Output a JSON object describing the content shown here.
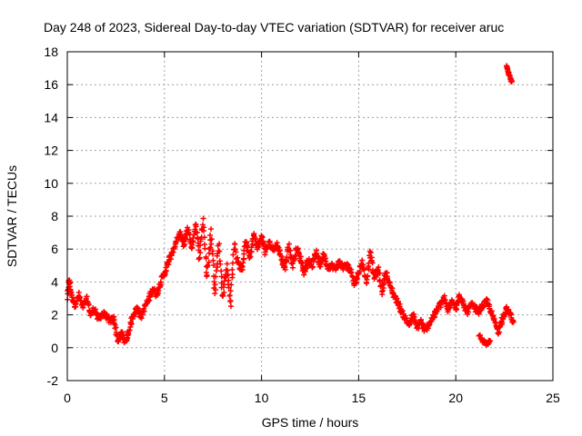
{
  "chart_data": {
    "type": "scatter",
    "title": "Day 248 of 2023, Sidereal Day-to-day VTEC variation (SDTVAR) for receiver aruc",
    "xlabel": "GPS time / hours",
    "ylabel": "SDTVAR / TECUs",
    "xlim": [
      0,
      25
    ],
    "ylim": [
      -2,
      18
    ],
    "xticks": [
      0,
      5,
      10,
      15,
      20,
      25
    ],
    "yticks": [
      -2,
      0,
      2,
      4,
      6,
      8,
      10,
      12,
      14,
      16,
      18
    ],
    "grid": true,
    "marker": "+",
    "color": "#ff0000",
    "series": [
      {
        "name": "SDTVAR",
        "path": [
          [
            0.0,
            3.0
          ],
          [
            0.1,
            4.1
          ],
          [
            0.2,
            3.2
          ],
          [
            0.4,
            2.6
          ],
          [
            0.6,
            3.2
          ],
          [
            0.8,
            2.4
          ],
          [
            1.0,
            3.0
          ],
          [
            1.2,
            2.0
          ],
          [
            1.4,
            2.4
          ],
          [
            1.6,
            1.7
          ],
          [
            1.8,
            2.1
          ],
          [
            2.0,
            1.9
          ],
          [
            2.2,
            1.6
          ],
          [
            2.4,
            1.8
          ],
          [
            2.6,
            0.4
          ],
          [
            2.8,
            0.9
          ],
          [
            3.0,
            0.3
          ],
          [
            3.2,
            1.2
          ],
          [
            3.4,
            2.0
          ],
          [
            3.6,
            2.4
          ],
          [
            3.8,
            1.9
          ],
          [
            4.0,
            2.5
          ],
          [
            4.2,
            3.0
          ],
          [
            4.4,
            3.6
          ],
          [
            4.6,
            3.2
          ],
          [
            4.8,
            4.0
          ],
          [
            5.0,
            4.5
          ],
          [
            5.2,
            5.2
          ],
          [
            5.4,
            5.8
          ],
          [
            5.6,
            6.4
          ],
          [
            5.8,
            7.0
          ],
          [
            6.0,
            6.2
          ],
          [
            6.2,
            7.3
          ],
          [
            6.4,
            6.0
          ],
          [
            6.6,
            7.6
          ],
          [
            6.8,
            5.4
          ],
          [
            7.0,
            7.8
          ],
          [
            7.2,
            4.2
          ],
          [
            7.4,
            7.1
          ],
          [
            7.6,
            3.4
          ],
          [
            7.8,
            6.4
          ],
          [
            8.0,
            3.0
          ],
          [
            8.2,
            5.0
          ],
          [
            8.4,
            2.6
          ],
          [
            8.6,
            6.4
          ],
          [
            8.8,
            5.0
          ],
          [
            9.0,
            4.8
          ],
          [
            9.2,
            6.5
          ],
          [
            9.4,
            5.4
          ],
          [
            9.6,
            6.9
          ],
          [
            9.8,
            6.0
          ],
          [
            10.0,
            6.8
          ],
          [
            10.2,
            5.8
          ],
          [
            10.4,
            6.4
          ],
          [
            10.6,
            5.9
          ],
          [
            10.8,
            6.3
          ],
          [
            11.0,
            5.5
          ],
          [
            11.2,
            4.8
          ],
          [
            11.4,
            6.2
          ],
          [
            11.6,
            5.0
          ],
          [
            11.8,
            6.1
          ],
          [
            12.0,
            5.4
          ],
          [
            12.2,
            4.6
          ],
          [
            12.4,
            5.3
          ],
          [
            12.6,
            5.0
          ],
          [
            12.8,
            5.8
          ],
          [
            13.0,
            5.0
          ],
          [
            13.2,
            5.7
          ],
          [
            13.4,
            4.9
          ],
          [
            13.6,
            5.0
          ],
          [
            13.8,
            4.8
          ],
          [
            14.0,
            5.2
          ],
          [
            14.2,
            4.9
          ],
          [
            14.4,
            5.0
          ],
          [
            14.6,
            4.7
          ],
          [
            14.8,
            3.8
          ],
          [
            15.0,
            4.6
          ],
          [
            15.2,
            5.2
          ],
          [
            15.4,
            4.0
          ],
          [
            15.6,
            5.8
          ],
          [
            15.8,
            4.2
          ],
          [
            16.0,
            4.8
          ],
          [
            16.2,
            3.4
          ],
          [
            16.4,
            4.6
          ],
          [
            16.6,
            3.8
          ],
          [
            16.8,
            3.2
          ],
          [
            17.0,
            2.8
          ],
          [
            17.2,
            2.2
          ],
          [
            17.4,
            1.8
          ],
          [
            17.6,
            1.4
          ],
          [
            17.8,
            2.0
          ],
          [
            18.0,
            1.2
          ],
          [
            18.2,
            1.6
          ],
          [
            18.4,
            1.0
          ],
          [
            18.6,
            1.4
          ],
          [
            18.8,
            1.8
          ],
          [
            19.0,
            2.2
          ],
          [
            19.2,
            2.6
          ],
          [
            19.4,
            3.0
          ],
          [
            19.6,
            2.2
          ],
          [
            19.8,
            3.0
          ],
          [
            20.0,
            2.4
          ],
          [
            20.2,
            3.1
          ],
          [
            20.4,
            2.6
          ],
          [
            20.6,
            2.2
          ],
          [
            20.8,
            2.6
          ],
          [
            21.0,
            2.4
          ],
          [
            21.2,
            2.2
          ],
          [
            21.4,
            2.6
          ],
          [
            21.6,
            2.8
          ],
          [
            21.8,
            2.2
          ],
          [
            22.0,
            1.6
          ],
          [
            22.2,
            1.0
          ],
          [
            22.4,
            1.8
          ],
          [
            22.6,
            2.4
          ],
          [
            22.8,
            2.0
          ],
          [
            23.0,
            1.4
          ]
        ],
        "clusters": [
          [
            [
              21.2,
              0.8
            ],
            [
              21.4,
              0.4
            ],
            [
              21.6,
              0.2
            ],
            [
              21.8,
              0.5
            ]
          ],
          [
            [
              22.6,
              17.1
            ],
            [
              22.7,
              16.8
            ],
            [
              22.8,
              16.4
            ],
            [
              22.9,
              16.1
            ]
          ]
        ]
      }
    ]
  }
}
